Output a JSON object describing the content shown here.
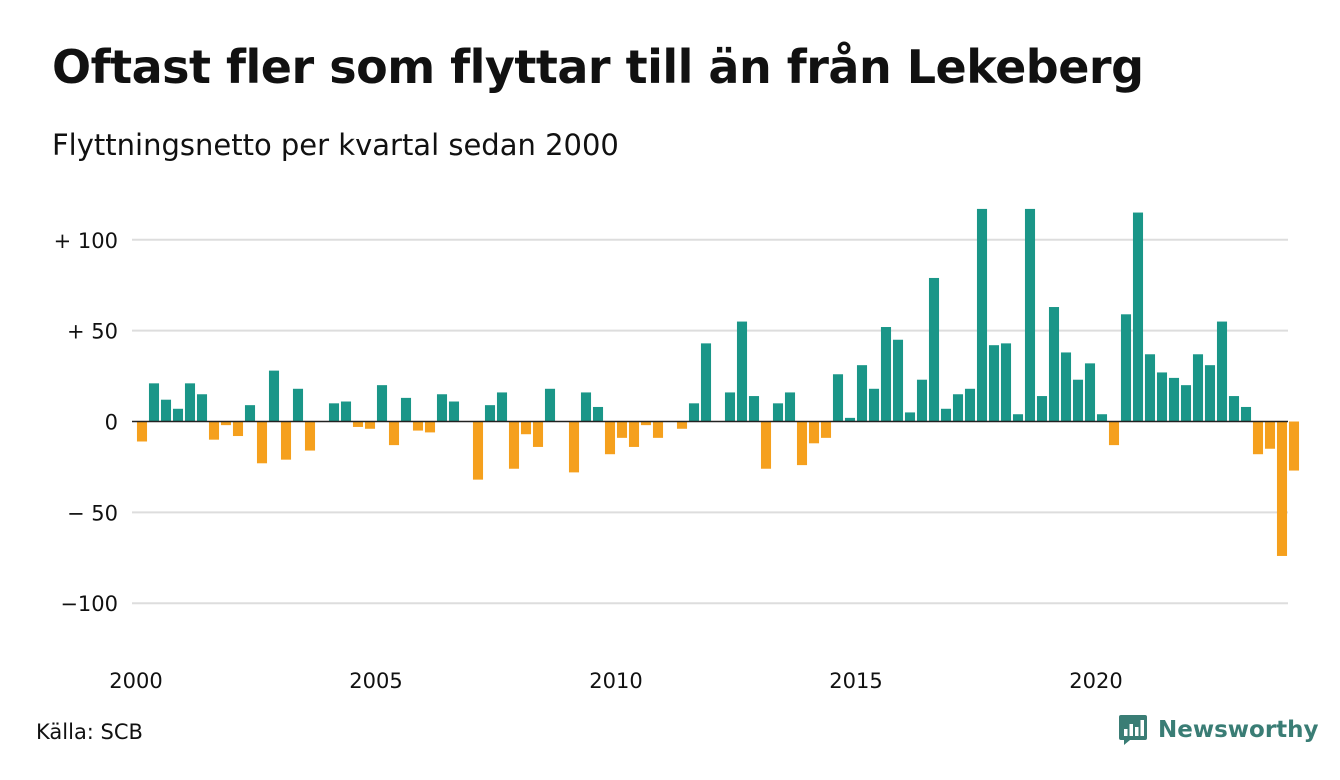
{
  "title": "Oftast fler som flyttar till än från Lekeberg",
  "subtitle": "Flyttningsnetto per kvartal sedan 2000",
  "source": "Källa: SCB",
  "brand": {
    "name": "Newsworthy",
    "icon": "newsworthy-logo-icon",
    "color": "#3a7d75"
  },
  "colors": {
    "positive": "#1a9688",
    "negative": "#f5a01d",
    "grid": "#dddddd",
    "zero_line": "#222222"
  },
  "chart_data": {
    "type": "bar",
    "title": "Oftast fler som flyttar till än från Lekeberg",
    "subtitle": "Flyttningsnetto per kvartal sedan 2000",
    "xlabel": "",
    "ylabel": "",
    "ylim": [
      -125,
      118
    ],
    "grid": true,
    "legend": "none",
    "y_ticks": [
      {
        "value": 100,
        "label": "+ 100"
      },
      {
        "value": 50,
        "label": "+  50"
      },
      {
        "value": 0,
        "label": "0"
      },
      {
        "value": -50,
        "label": "− 50"
      },
      {
        "value": -100,
        "label": "−100"
      }
    ],
    "x_tick_labels": [
      "2000",
      "2005",
      "2010",
      "2015",
      "2020"
    ],
    "categories": [
      "2000 Q1",
      "2000 Q2",
      "2000 Q3",
      "2000 Q4",
      "2001 Q1",
      "2001 Q2",
      "2001 Q3",
      "2001 Q4",
      "2002 Q1",
      "2002 Q2",
      "2002 Q3",
      "2002 Q4",
      "2003 Q1",
      "2003 Q2",
      "2003 Q3",
      "2003 Q4",
      "2004 Q1",
      "2004 Q2",
      "2004 Q3",
      "2004 Q4",
      "2005 Q1",
      "2005 Q2",
      "2005 Q3",
      "2005 Q4",
      "2006 Q1",
      "2006 Q2",
      "2006 Q3",
      "2006 Q4",
      "2007 Q1",
      "2007 Q2",
      "2007 Q3",
      "2007 Q4",
      "2008 Q1",
      "2008 Q2",
      "2008 Q3",
      "2008 Q4",
      "2009 Q1",
      "2009 Q2",
      "2009 Q3",
      "2009 Q4",
      "2010 Q1",
      "2010 Q2",
      "2010 Q3",
      "2010 Q4",
      "2011 Q1",
      "2011 Q2",
      "2011 Q3",
      "2011 Q4",
      "2012 Q1",
      "2012 Q2",
      "2012 Q3",
      "2012 Q4",
      "2013 Q1",
      "2013 Q2",
      "2013 Q3",
      "2013 Q4",
      "2014 Q1",
      "2014 Q2",
      "2014 Q3",
      "2014 Q4",
      "2015 Q1",
      "2015 Q2",
      "2015 Q3",
      "2015 Q4",
      "2016 Q1",
      "2016 Q2",
      "2016 Q3",
      "2016 Q4",
      "2017 Q1",
      "2017 Q2",
      "2017 Q3",
      "2017 Q4",
      "2018 Q1",
      "2018 Q2",
      "2018 Q3",
      "2018 Q4",
      "2019 Q1",
      "2019 Q2",
      "2019 Q3",
      "2019 Q4",
      "2020 Q1",
      "2020 Q2",
      "2020 Q3",
      "2020 Q4",
      "2021 Q1",
      "2021 Q2",
      "2021 Q3",
      "2021 Q4",
      "2022 Q1",
      "2022 Q2",
      "2022 Q3",
      "2022 Q4",
      "2023 Q1",
      "2023 Q2",
      "2023 Q3",
      "2023 Q4",
      "2024 Q1"
    ],
    "values": [
      -11,
      21,
      12,
      7,
      21,
      15,
      -10,
      -2,
      -8,
      9,
      -23,
      28,
      -21,
      18,
      -16,
      0,
      10,
      11,
      -3,
      -4,
      20,
      -13,
      13,
      -5,
      -6,
      15,
      11,
      0,
      -32,
      9,
      16,
      -26,
      -7,
      -14,
      18,
      0,
      -28,
      16,
      8,
      -18,
      -9,
      -14,
      -2,
      -9,
      0,
      -4,
      10,
      43,
      0,
      16,
      55,
      14,
      -26,
      10,
      16,
      -24,
      -12,
      -9,
      26,
      2,
      31,
      18,
      52,
      45,
      5,
      23,
      79,
      7,
      15,
      18,
      117,
      42,
      43,
      4,
      117,
      14,
      63,
      38,
      23,
      32,
      4,
      -13,
      59,
      115,
      37,
      27,
      24,
      20,
      37,
      31,
      55,
      14,
      8,
      -18,
      -15,
      -74,
      -27
    ]
  }
}
